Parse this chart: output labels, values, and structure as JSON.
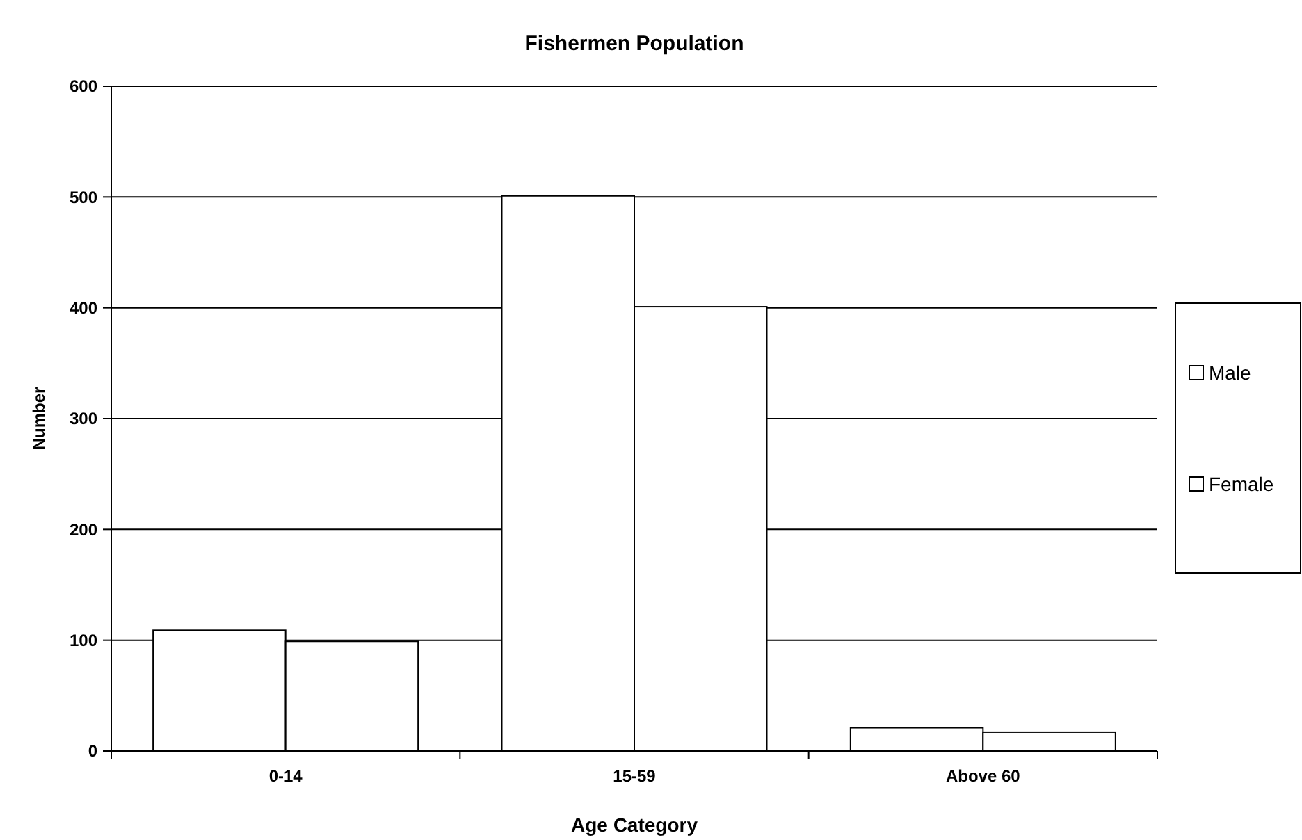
{
  "chart_data": {
    "type": "bar",
    "title": "Fishermen Population",
    "xlabel": "Age Category",
    "ylabel": "Number",
    "categories": [
      "0-14",
      "15-59",
      "Above 60"
    ],
    "series": [
      {
        "name": "Male",
        "color": "#ffffff",
        "values": [
          109,
          501,
          21
        ]
      },
      {
        "name": "Female",
        "color": "#ffffff",
        "values": [
          99,
          401,
          17
        ]
      }
    ],
    "ylim": [
      0,
      600
    ],
    "yticks": [
      0,
      100,
      200,
      300,
      400,
      500,
      600
    ],
    "grid": "y",
    "legend": "right"
  }
}
